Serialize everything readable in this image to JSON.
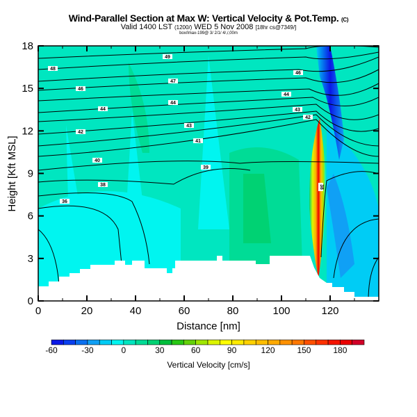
{
  "chart_data": {
    "type": "heatmap",
    "title": "Wind-Parallel Section at Max W: Vertical Velocity & Pot.Temp.",
    "title_suffix": "(C)",
    "subtitle_main": "Valid 1400 LST",
    "subtitle_detail": "(1200/)",
    "subtitle_date": "WED 5 Nov 2008",
    "subtitle_run": "[18hr cs@7349/]",
    "subtitle_small": "box/lmax-199@ 3/ 2/1/ 4/,/,00m",
    "xlabel": "Distance [nm]",
    "ylabel": "Height [Kft MSL]",
    "xlim": [
      0,
      140
    ],
    "ylim": [
      0,
      18
    ],
    "xticks": [
      "0",
      "20",
      "40",
      "60",
      "80",
      "100",
      "120"
    ],
    "yticks": [
      "0",
      "3",
      "6",
      "9",
      "12",
      "15",
      "18"
    ],
    "colorbar": {
      "label": "Vertical Velocity [cm/s]",
      "range": [
        -60,
        200
      ],
      "step": 10,
      "tick_labels": [
        "-60",
        "-30",
        "0",
        "30",
        "60",
        "90",
        "120",
        "150",
        "180"
      ],
      "colors": [
        "#0a18e6",
        "#0a40f0",
        "#0a70f0",
        "#10a0f5",
        "#00ccf5",
        "#00f5f0",
        "#00e6c0",
        "#00dc96",
        "#00d273",
        "#00be3c",
        "#28c814",
        "#64d20a",
        "#a0e600",
        "#dcf500",
        "#ffff00",
        "#ffeb00",
        "#ffd200",
        "#ffbe00",
        "#ffaa00",
        "#ff9100",
        "#ff7800",
        "#ff5000",
        "#ff3200",
        "#f51400",
        "#eb0000",
        "#d20028"
      ]
    },
    "contour_labels": {
      "left": [
        "48",
        "46",
        "44",
        "42",
        "40",
        "38",
        "36"
      ],
      "mid": [
        "49",
        "47",
        "44",
        "43",
        "41",
        "39"
      ],
      "right": [
        "46",
        "44",
        "43",
        "42"
      ],
      "updraft": "38"
    },
    "features": {
      "max_updraft_x_nm": 112,
      "max_updraft_height": 8.5,
      "max_updraft_value": 200,
      "downdraft_x_nm": 117,
      "downdraft_value": -60
    }
  }
}
